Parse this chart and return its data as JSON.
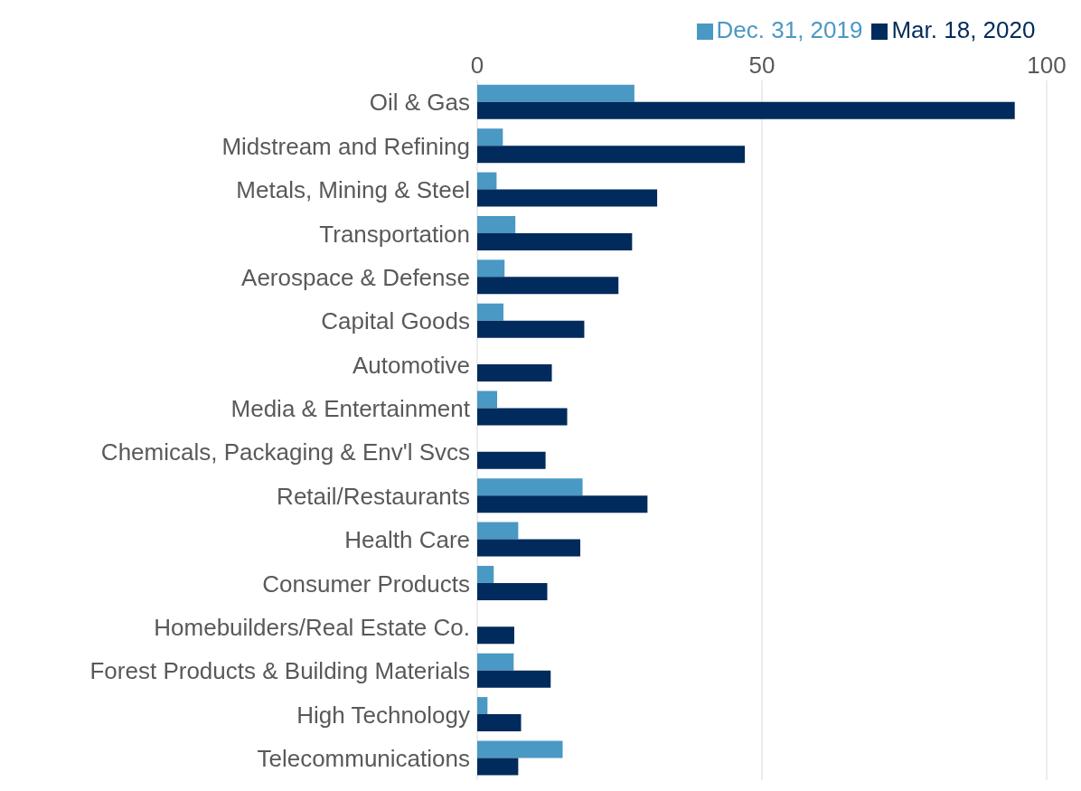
{
  "chart_data": {
    "type": "bar",
    "orientation": "horizontal",
    "categories": [
      "Oil & Gas",
      "Midstream and Refining",
      "Metals, Mining & Steel",
      "Transportation",
      "Aerospace & Defense",
      "Capital Goods",
      "Automotive",
      "Media & Entertainment",
      "Chemicals, Packaging & Env'l Svcs",
      "Retail/Restaurants",
      "Health Care",
      "Consumer Products",
      "Homebuilders/Real Estate Co.",
      "Forest Products & Building Materials",
      "High Technology",
      "Telecommunications"
    ],
    "series": [
      {
        "name": "Dec. 31, 2019",
        "color": "#4a98c4",
        "values": [
          27.6,
          4.5,
          3.4,
          6.7,
          4.8,
          4.6,
          0,
          3.5,
          0,
          18.5,
          7.2,
          2.9,
          0,
          6.4,
          1.8,
          15
        ]
      },
      {
        "name": "Mar. 18, 2020",
        "color": "#002b5c",
        "values": [
          94.4,
          47,
          31.6,
          27.2,
          24.8,
          18.8,
          13.1,
          15.8,
          12,
          29.9,
          18.1,
          12.3,
          6.5,
          12.9,
          7.7,
          7.2
        ]
      }
    ],
    "xlim": [
      0,
      100
    ],
    "xticks": [
      0,
      50,
      100
    ],
    "grid": "x",
    "legend": "top"
  }
}
